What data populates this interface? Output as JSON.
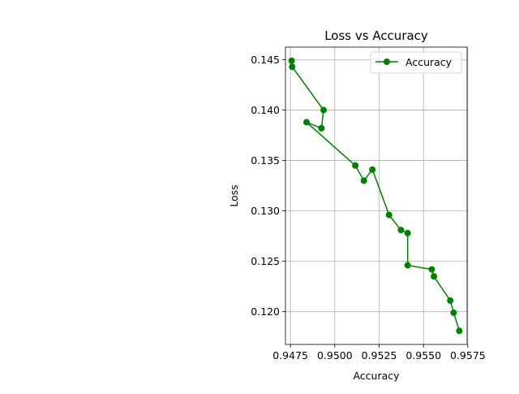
{
  "chart_data": {
    "type": "line",
    "title": "Loss vs Accuracy",
    "xlabel": "Accuracy",
    "ylabel": "Loss",
    "xlim": [
      0.94722,
      0.95746
    ],
    "ylim": [
      0.11675,
      0.14625
    ],
    "xticks": [
      0.9475,
      0.95,
      0.9525,
      0.955,
      0.9575
    ],
    "xtick_labels": [
      "0.9475",
      "0.9500",
      "0.9525",
      "0.9550",
      "0.9575"
    ],
    "yticks": [
      0.12,
      0.125,
      0.13,
      0.135,
      0.14,
      0.145
    ],
    "ytick_labels": [
      "0.120",
      "0.125",
      "0.130",
      "0.135",
      "0.140",
      "0.145"
    ],
    "grid": true,
    "legend_position": "top-right",
    "series": [
      {
        "name": "Accuracy",
        "color": "#008000",
        "marker": "circle",
        "x": [
          0.94757,
          0.9476,
          0.94937,
          0.94925,
          0.94841,
          0.95116,
          0.95164,
          0.95212,
          0.95306,
          0.95373,
          0.95411,
          0.95411,
          0.95547,
          0.95559,
          0.95651,
          0.9567,
          0.95702
        ],
        "y": [
          0.1449,
          0.1443,
          0.14,
          0.1382,
          0.1388,
          0.1345,
          0.133,
          0.1341,
          0.1296,
          0.1281,
          0.1278,
          0.1246,
          0.1242,
          0.1235,
          0.1211,
          0.1199,
          0.1181
        ]
      }
    ]
  }
}
